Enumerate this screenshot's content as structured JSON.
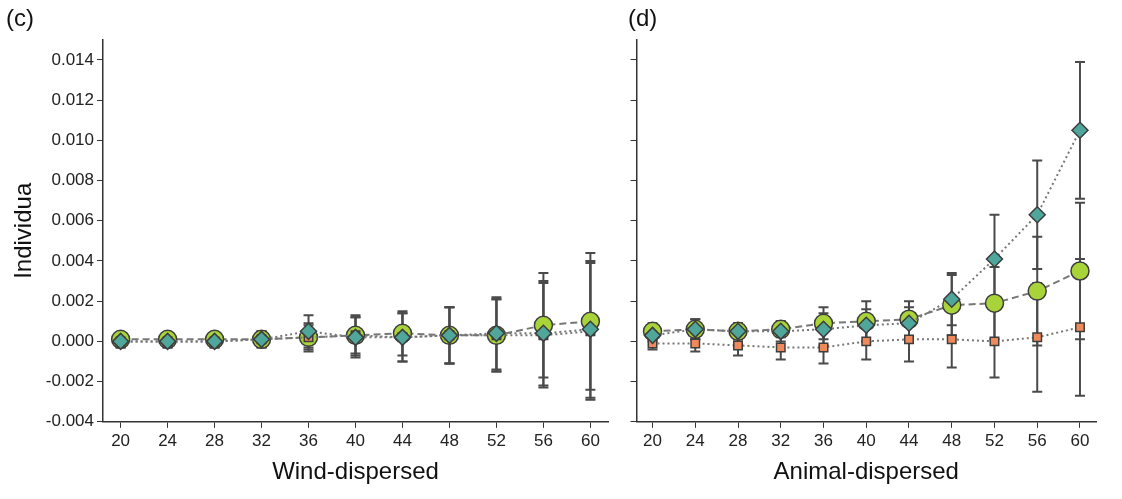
{
  "chart_data": [
    {
      "type": "line",
      "title": "(c)",
      "x_label": "Wind-dispersed",
      "y_label": "Individua",
      "x": [
        20,
        24,
        28,
        32,
        36,
        40,
        44,
        48,
        52,
        56,
        60
      ],
      "xlim": [
        18.5,
        61.5
      ],
      "xticks": [
        20,
        24,
        28,
        32,
        36,
        40,
        44,
        48,
        52,
        56,
        60
      ],
      "ylim": [
        -0.004,
        0.015
      ],
      "yticks": [
        {
          "value": -0.004,
          "label": "-0.004"
        },
        {
          "value": -0.002,
          "label": "-0.002"
        },
        {
          "value": 0,
          "label": "0.000"
        },
        {
          "value": 0.002,
          "label": "0.002"
        },
        {
          "value": 0.004,
          "label": "0.004"
        },
        {
          "value": 0.006,
          "label": "0.006"
        },
        {
          "value": 0.008,
          "label": "0.008"
        },
        {
          "value": 0.01,
          "label": "0.010"
        },
        {
          "value": 0.012,
          "label": "0.012"
        },
        {
          "value": 0.014,
          "label": "0.014"
        }
      ],
      "grid": false,
      "series": [
        {
          "color": "#4fa69a",
          "marker": "diamond",
          "line_style": "dotted",
          "values": [
            0.0,
            0.0,
            0.0,
            0.0001,
            0.0005,
            0.0002,
            0.0002,
            0.0003,
            0.0004,
            0.0004,
            0.0006
          ],
          "errors": [
            0.0003,
            0.0003,
            0.0003,
            0.0004,
            0.0008,
            0.001,
            0.0012,
            0.0014,
            0.0018,
            0.0026,
            0.0034
          ]
        },
        {
          "color": "#f08a5a",
          "marker": "square",
          "line_style": "dotted",
          "values": [
            0.0,
            0.0,
            0.0,
            0.0001,
            0.0002,
            0.0003,
            0.0002,
            0.0003,
            0.0003,
            0.0003,
            0.0005
          ],
          "errors": [
            0.0003,
            0.0003,
            0.0003,
            0.0004,
            0.0007,
            0.001,
            0.0012,
            0.0014,
            0.0018,
            0.0026,
            0.0034
          ]
        },
        {
          "color": "#a8d43a",
          "marker": "circle",
          "line_style": "dashed",
          "values": [
            0.0001,
            0.0001,
            0.0001,
            0.0001,
            0.0002,
            0.0003,
            0.0004,
            0.0003,
            0.0003,
            0.0008,
            0.001
          ],
          "errors": [
            0.0003,
            0.0003,
            0.0003,
            0.0003,
            0.0006,
            0.0009,
            0.0011,
            0.0014,
            0.0018,
            0.0026,
            0.0034
          ]
        }
      ]
    },
    {
      "type": "line",
      "title": "(d)",
      "x_label": "Animal-dispersed",
      "x": [
        20,
        24,
        28,
        32,
        36,
        40,
        44,
        48,
        52,
        56,
        60
      ],
      "xlim": [
        18.5,
        61.5
      ],
      "xticks": [
        20,
        24,
        28,
        32,
        36,
        40,
        44,
        48,
        52,
        56,
        60
      ],
      "ylim": [
        -0.004,
        0.015
      ],
      "yticks": [
        {
          "value": -0.004,
          "label": "-0.004"
        },
        {
          "value": -0.002,
          "label": "-0.002"
        },
        {
          "value": 0,
          "label": "0.000"
        },
        {
          "value": 0.002,
          "label": "0.002"
        },
        {
          "value": 0.004,
          "label": "0.004"
        },
        {
          "value": 0.006,
          "label": "0.006"
        },
        {
          "value": 0.008,
          "label": "0.008"
        },
        {
          "value": 0.01,
          "label": "0.010"
        },
        {
          "value": 0.012,
          "label": "0.012"
        },
        {
          "value": 0.014,
          "label": "0.014"
        }
      ],
      "grid": false,
      "tick_labels": "x",
      "series": [
        {
          "color": "#4fa69a",
          "marker": "diamond",
          "line_style": "dotted",
          "values": [
            0.0003,
            0.0006,
            0.0005,
            0.0005,
            0.0006,
            0.0008,
            0.0009,
            0.0021,
            0.0041,
            0.0063,
            0.0105
          ],
          "errors": [
            0.0003,
            0.0005,
            0.0004,
            0.0005,
            0.0008,
            0.0008,
            0.0008,
            0.0013,
            0.0022,
            0.0027,
            0.0034
          ]
        },
        {
          "color": "#f08a5a",
          "marker": "square",
          "line_style": "dotted",
          "values": [
            -0.0001,
            -0.0001,
            -0.0002,
            -0.0003,
            -0.0003,
            0.0,
            0.0001,
            0.0001,
            0.0,
            0.0002,
            0.0007
          ],
          "errors": [
            0.0003,
            0.0004,
            0.0005,
            0.0006,
            0.0008,
            0.0009,
            0.0011,
            0.0014,
            0.0018,
            0.0027,
            0.0034
          ]
        },
        {
          "color": "#a8d43a",
          "marker": "circle",
          "line_style": "dashed",
          "values": [
            0.0005,
            0.0006,
            0.0005,
            0.0006,
            0.0009,
            0.001,
            0.0011,
            0.0018,
            0.0019,
            0.0025,
            0.0035
          ],
          "errors": [
            0.0004,
            0.0005,
            0.0004,
            0.0004,
            0.0008,
            0.001,
            0.0009,
            0.0015,
            0.0018,
            0.0027,
            0.0034
          ]
        }
      ]
    }
  ]
}
